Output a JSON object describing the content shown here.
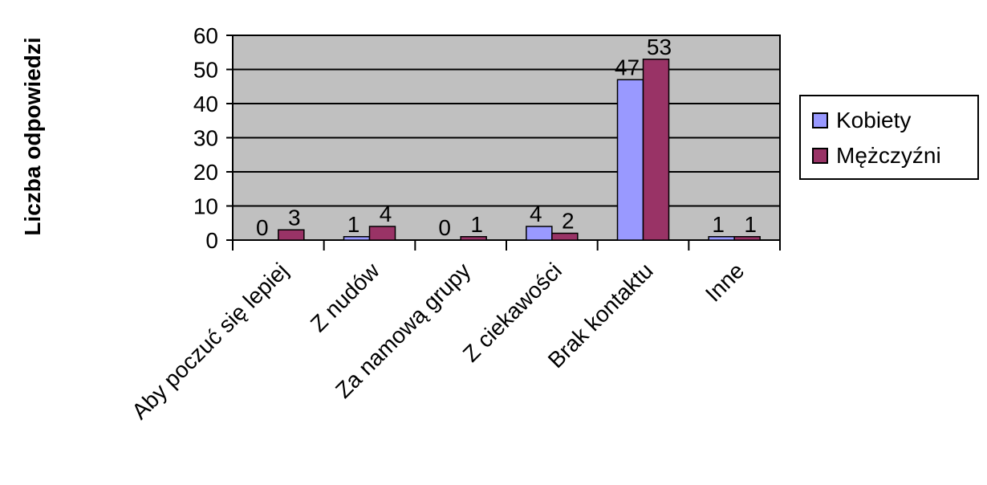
{
  "chart_data": {
    "type": "bar",
    "title": "",
    "xlabel": "",
    "ylabel": "Liczba odpowiedzi",
    "ylim": [
      0,
      60
    ],
    "yticks": [
      0,
      10,
      20,
      30,
      40,
      50,
      60
    ],
    "grid": true,
    "legend_position": "right",
    "categories": [
      "Aby poczuć się lepiej",
      "Z nudów",
      "Za namową grupy",
      "Z ciekawości",
      "Brak kontaktu",
      "Inne"
    ],
    "series": [
      {
        "name": "Kobiety",
        "color": "#9999ff",
        "values": [
          0,
          1,
          0,
          4,
          47,
          1
        ]
      },
      {
        "name": "Mężczyźni",
        "color": "#993366",
        "values": [
          3,
          4,
          1,
          2,
          53,
          1
        ]
      }
    ],
    "plot_background": "#c0c0c0"
  }
}
